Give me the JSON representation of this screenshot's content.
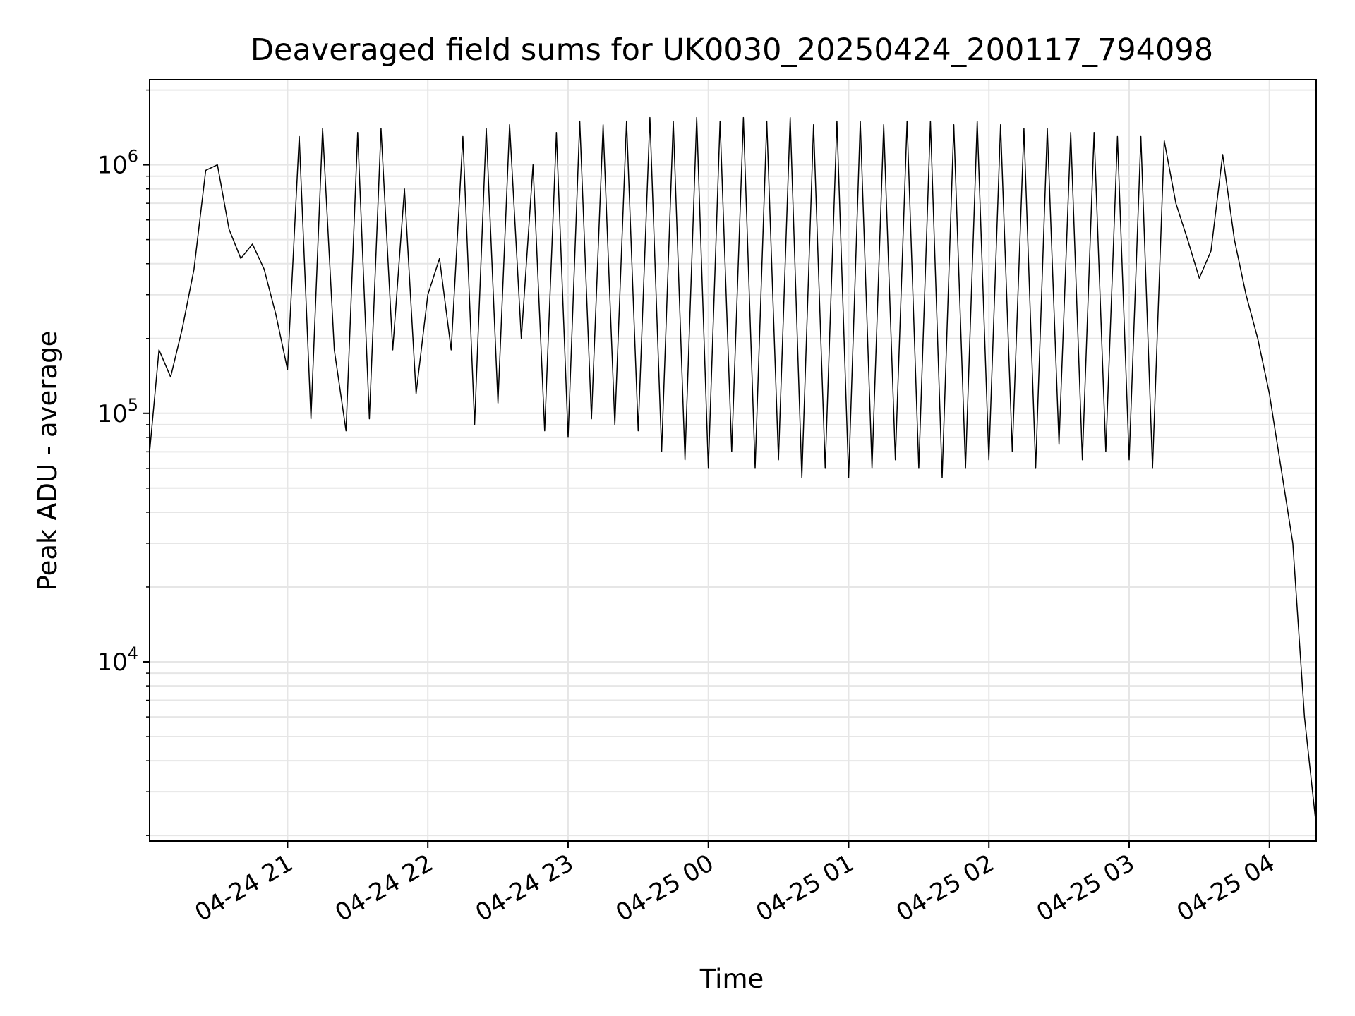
{
  "chart_data": {
    "type": "line",
    "title": "Deaveraged field sums for UK0030_20250424_200117_794098",
    "xlabel": "Time",
    "ylabel": "Peak ADU - average",
    "yscale": "log",
    "xlim": [
      "2025-04-24 20:01",
      "2025-04-25 04:20"
    ],
    "ylim": [
      1900,
      2200000
    ],
    "grid": true,
    "grid_color": "#e6e6e6",
    "line_color": "#000000",
    "x_ticks": [
      {
        "label": "04-24 21",
        "value": "2025-04-24 21:00"
      },
      {
        "label": "04-24 22",
        "value": "2025-04-24 22:00"
      },
      {
        "label": "04-24 23",
        "value": "2025-04-24 23:00"
      },
      {
        "label": "04-25 00",
        "value": "2025-04-25 00:00"
      },
      {
        "label": "04-25 01",
        "value": "2025-04-25 01:00"
      },
      {
        "label": "04-25 02",
        "value": "2025-04-25 02:00"
      },
      {
        "label": "04-25 03",
        "value": "2025-04-25 03:00"
      },
      {
        "label": "04-25 04",
        "value": "2025-04-25 04:00"
      }
    ],
    "y_ticks": [
      {
        "base": "10",
        "exp": "4",
        "value": 10000
      },
      {
        "base": "10",
        "exp": "5",
        "value": 100000
      },
      {
        "base": "10",
        "exp": "6",
        "value": 1000000
      }
    ],
    "series": [
      {
        "x": [
          "2025-04-24 20:01",
          "2025-04-24 20:05",
          "2025-04-24 20:10",
          "2025-04-24 20:15",
          "2025-04-24 20:20",
          "2025-04-24 20:25",
          "2025-04-24 20:30",
          "2025-04-24 20:35",
          "2025-04-24 20:40",
          "2025-04-24 20:45",
          "2025-04-24 20:50",
          "2025-04-24 20:55",
          "2025-04-24 21:00",
          "2025-04-24 21:05",
          "2025-04-24 21:10",
          "2025-04-24 21:15",
          "2025-04-24 21:20",
          "2025-04-24 21:25",
          "2025-04-24 21:30",
          "2025-04-24 21:35",
          "2025-04-24 21:40",
          "2025-04-24 21:45",
          "2025-04-24 21:50",
          "2025-04-24 21:55",
          "2025-04-24 22:00",
          "2025-04-24 22:05",
          "2025-04-24 22:10",
          "2025-04-24 22:15",
          "2025-04-24 22:20",
          "2025-04-24 22:25",
          "2025-04-24 22:30",
          "2025-04-24 22:35",
          "2025-04-24 22:40",
          "2025-04-24 22:45",
          "2025-04-24 22:50",
          "2025-04-24 22:55",
          "2025-04-24 23:00",
          "2025-04-24 23:05",
          "2025-04-24 23:10",
          "2025-04-24 23:15",
          "2025-04-24 23:20",
          "2025-04-24 23:25",
          "2025-04-24 23:30",
          "2025-04-24 23:35",
          "2025-04-24 23:40",
          "2025-04-24 23:45",
          "2025-04-24 23:50",
          "2025-04-24 23:55",
          "2025-04-25 00:00",
          "2025-04-25 00:05",
          "2025-04-25 00:10",
          "2025-04-25 00:15",
          "2025-04-25 00:20",
          "2025-04-25 00:25",
          "2025-04-25 00:30",
          "2025-04-25 00:35",
          "2025-04-25 00:40",
          "2025-04-25 00:45",
          "2025-04-25 00:50",
          "2025-04-25 00:55",
          "2025-04-25 01:00",
          "2025-04-25 01:05",
          "2025-04-25 01:10",
          "2025-04-25 01:15",
          "2025-04-25 01:20",
          "2025-04-25 01:25",
          "2025-04-25 01:30",
          "2025-04-25 01:35",
          "2025-04-25 01:40",
          "2025-04-25 01:45",
          "2025-04-25 01:50",
          "2025-04-25 01:55",
          "2025-04-25 02:00",
          "2025-04-25 02:05",
          "2025-04-25 02:10",
          "2025-04-25 02:15",
          "2025-04-25 02:20",
          "2025-04-25 02:25",
          "2025-04-25 02:30",
          "2025-04-25 02:35",
          "2025-04-25 02:40",
          "2025-04-25 02:45",
          "2025-04-25 02:50",
          "2025-04-25 02:55",
          "2025-04-25 03:00",
          "2025-04-25 03:05",
          "2025-04-25 03:10",
          "2025-04-25 03:15",
          "2025-04-25 03:20",
          "2025-04-25 03:25",
          "2025-04-25 03:30",
          "2025-04-25 03:35",
          "2025-04-25 03:40",
          "2025-04-25 03:45",
          "2025-04-25 03:50",
          "2025-04-25 03:55",
          "2025-04-25 04:00",
          "2025-04-25 04:05",
          "2025-04-25 04:10",
          "2025-04-25 04:15",
          "2025-04-25 04:20"
        ],
        "y": [
          70000,
          180000,
          140000,
          220000,
          380000,
          950000,
          1000000,
          550000,
          420000,
          480000,
          380000,
          250000,
          150000,
          1300000,
          95000,
          1400000,
          180000,
          85000,
          1350000,
          95000,
          1400000,
          180000,
          800000,
          120000,
          300000,
          420000,
          180000,
          1300000,
          90000,
          1400000,
          110000,
          1450000,
          200000,
          1000000,
          85000,
          1350000,
          80000,
          1500000,
          95000,
          1450000,
          90000,
          1500000,
          85000,
          1550000,
          70000,
          1500000,
          65000,
          1550000,
          60000,
          1500000,
          70000,
          1550000,
          60000,
          1500000,
          65000,
          1550000,
          55000,
          1450000,
          60000,
          1500000,
          55000,
          1500000,
          60000,
          1450000,
          65000,
          1500000,
          60000,
          1500000,
          55000,
          1450000,
          60000,
          1500000,
          65000,
          1450000,
          70000,
          1400000,
          60000,
          1400000,
          75000,
          1350000,
          65000,
          1350000,
          70000,
          1300000,
          65000,
          1300000,
          60000,
          1250000,
          700000,
          500000,
          350000,
          450000,
          1100000,
          500000,
          300000,
          200000,
          120000,
          60000,
          30000,
          6000,
          2200
        ]
      }
    ]
  }
}
